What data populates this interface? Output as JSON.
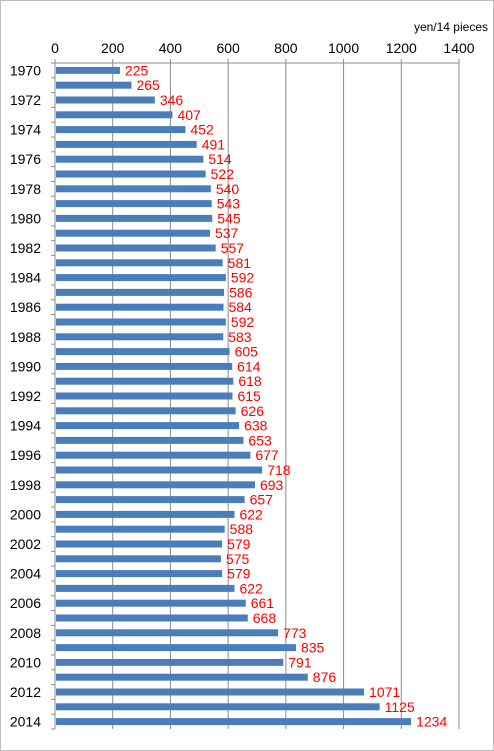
{
  "chart_data": {
    "type": "bar",
    "orientation": "horizontal",
    "unit_label": "yen/14 pieces",
    "title": "",
    "xlabel": "",
    "ylabel": "",
    "xlim": [
      0,
      1400
    ],
    "x_ticks": [
      0,
      200,
      400,
      600,
      800,
      1000,
      1200,
      1400
    ],
    "x_axis_position": "top",
    "grid": {
      "vertical": true,
      "horizontal": false
    },
    "bar_color": "#4a7ebb",
    "label_color": "#ff0000",
    "categories": [
      "1970",
      "1971",
      "1972",
      "1973",
      "1974",
      "1975",
      "1976",
      "1977",
      "1978",
      "1979",
      "1980",
      "1981",
      "1982",
      "1983",
      "1984",
      "1985",
      "1986",
      "1987",
      "1988",
      "1989",
      "1990",
      "1991",
      "1992",
      "1993",
      "1994",
      "1995",
      "1996",
      "1997",
      "1998",
      "1999",
      "2000",
      "2001",
      "2002",
      "2003",
      "2004",
      "2005",
      "2006",
      "2007",
      "2008",
      "2009",
      "2010",
      "2011",
      "2012",
      "2013",
      "2014"
    ],
    "shown_category_labels": [
      "1970",
      "1972",
      "1974",
      "1976",
      "1978",
      "1980",
      "1982",
      "1984",
      "1986",
      "1988",
      "1990",
      "1992",
      "1994",
      "1996",
      "1998",
      "2000",
      "2002",
      "2004",
      "2006",
      "2008",
      "2010",
      "2012",
      "2014"
    ],
    "values": [
      225,
      265,
      346,
      407,
      452,
      491,
      514,
      522,
      540,
      543,
      545,
      537,
      557,
      581,
      592,
      586,
      584,
      592,
      583,
      605,
      614,
      618,
      615,
      626,
      638,
      653,
      677,
      718,
      693,
      657,
      622,
      588,
      579,
      575,
      579,
      622,
      661,
      668,
      773,
      835,
      791,
      876,
      1071,
      1125,
      1234
    ]
  }
}
